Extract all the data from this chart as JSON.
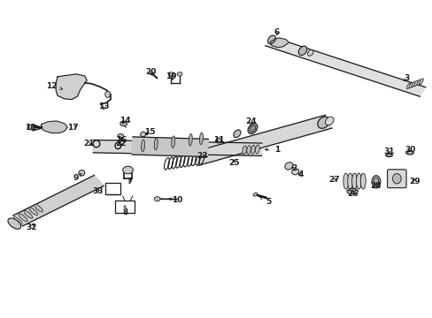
{
  "bg_color": "#ffffff",
  "fig_width": 4.89,
  "fig_height": 3.6,
  "dpi": 100,
  "line_color": "#1a1a1a",
  "font_size": 6.5,
  "labels": {
    "1": [
      0.64,
      0.53,
      0.605,
      0.53
    ],
    "2": [
      0.68,
      0.47,
      0.668,
      0.48
    ],
    "3": [
      0.94,
      0.755,
      0.93,
      0.738
    ],
    "4": [
      0.695,
      0.45,
      0.683,
      0.458
    ],
    "5": [
      0.62,
      0.365,
      0.6,
      0.38
    ],
    "6": [
      0.64,
      0.9,
      0.64,
      0.882
    ],
    "7": [
      0.3,
      0.43,
      0.295,
      0.445
    ],
    "8": [
      0.288,
      0.33,
      0.288,
      0.355
    ],
    "9": [
      0.175,
      0.44,
      0.188,
      0.455
    ],
    "10": [
      0.41,
      0.37,
      0.388,
      0.375
    ],
    "11": [
      0.505,
      0.56,
      0.49,
      0.555
    ],
    "12": [
      0.118,
      0.73,
      0.145,
      0.72
    ],
    "13": [
      0.24,
      0.665,
      0.238,
      0.655
    ],
    "14": [
      0.288,
      0.62,
      0.282,
      0.61
    ],
    "15": [
      0.345,
      0.585,
      0.33,
      0.578
    ],
    "16": [
      0.28,
      0.56,
      0.28,
      0.57
    ],
    "17": [
      0.168,
      0.6,
      0.178,
      0.605
    ],
    "18": [
      0.068,
      0.6,
      0.088,
      0.602
    ],
    "19": [
      0.395,
      0.76,
      0.4,
      0.748
    ],
    "20": [
      0.348,
      0.775,
      0.352,
      0.762
    ],
    "21": [
      0.205,
      0.548,
      0.218,
      0.545
    ],
    "22": [
      0.278,
      0.548,
      0.278,
      0.538
    ],
    "23": [
      0.468,
      0.51,
      0.478,
      0.5
    ],
    "24": [
      0.58,
      0.618,
      0.58,
      0.606
    ],
    "25": [
      0.54,
      0.488,
      0.54,
      0.498
    ],
    "26": [
      0.815,
      0.39,
      0.815,
      0.405
    ],
    "27": [
      0.772,
      0.435,
      0.785,
      0.44
    ],
    "28": [
      0.87,
      0.415,
      0.862,
      0.43
    ],
    "29": [
      0.96,
      0.43,
      0.948,
      0.44
    ],
    "30": [
      0.95,
      0.53,
      0.942,
      0.52
    ],
    "31": [
      0.9,
      0.525,
      0.9,
      0.515
    ],
    "32": [
      0.072,
      0.285,
      0.082,
      0.302
    ],
    "33": [
      0.225,
      0.398,
      0.23,
      0.412
    ]
  }
}
